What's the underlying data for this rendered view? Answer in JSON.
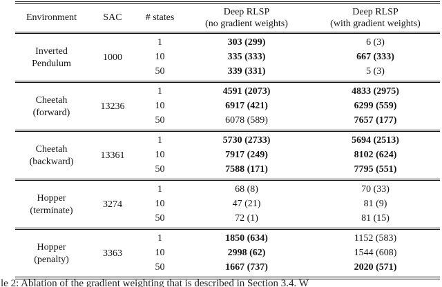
{
  "colors": {
    "ink": "#141414",
    "background": "#ffffff"
  },
  "table": {
    "header": {
      "environment": "Environment",
      "sac": "SAC",
      "states": "# states",
      "no_grad_title": "Deep RLSP",
      "no_grad_sub": "(no gradient weights)",
      "with_grad_title": "Deep RLSP",
      "with_grad_sub": "(with gradient weights)"
    },
    "blocks": [
      {
        "environment": "Inverted\nPendulum",
        "sac": "1000",
        "rows": [
          {
            "states": "1",
            "no_grad": "303 (299)",
            "no_grad_bold": true,
            "with_grad": "6 (3)",
            "with_grad_bold": false
          },
          {
            "states": "10",
            "no_grad": "335 (333)",
            "no_grad_bold": true,
            "with_grad": "667 (333)",
            "with_grad_bold": true
          },
          {
            "states": "50",
            "no_grad": "339 (331)",
            "no_grad_bold": true,
            "with_grad": "5 (3)",
            "with_grad_bold": false
          }
        ]
      },
      {
        "environment": "Cheetah\n(forward)",
        "sac": "13236",
        "rows": [
          {
            "states": "1",
            "no_grad": "4591 (2073)",
            "no_grad_bold": true,
            "with_grad": "4833 (2975)",
            "with_grad_bold": true
          },
          {
            "states": "10",
            "no_grad": "6917 (421)",
            "no_grad_bold": true,
            "with_grad": "6299 (559)",
            "with_grad_bold": true
          },
          {
            "states": "50",
            "no_grad": "6078 (589)",
            "no_grad_bold": false,
            "with_grad": "7657 (177)",
            "with_grad_bold": true
          }
        ]
      },
      {
        "environment": "Cheetah\n(backward)",
        "sac": "13361",
        "rows": [
          {
            "states": "1",
            "no_grad": "5730 (2733)",
            "no_grad_bold": true,
            "with_grad": "5694 (2513)",
            "with_grad_bold": true
          },
          {
            "states": "10",
            "no_grad": "7917 (249)",
            "no_grad_bold": true,
            "with_grad": "8102 (624)",
            "with_grad_bold": true
          },
          {
            "states": "50",
            "no_grad": "7588 (171)",
            "no_grad_bold": true,
            "with_grad": "7795 (551)",
            "with_grad_bold": true
          }
        ]
      },
      {
        "environment": "Hopper\n(terminate)",
        "sac": "3274",
        "rows": [
          {
            "states": "1",
            "no_grad": "68 (8)",
            "no_grad_bold": false,
            "with_grad": "70 (33)",
            "with_grad_bold": false
          },
          {
            "states": "10",
            "no_grad": "47 (21)",
            "no_grad_bold": false,
            "with_grad": "81 (9)",
            "with_grad_bold": false
          },
          {
            "states": "50",
            "no_grad": "72 (1)",
            "no_grad_bold": false,
            "with_grad": "81 (15)",
            "with_grad_bold": false
          }
        ]
      },
      {
        "environment": "Hopper\n(penalty)",
        "sac": "3363",
        "rows": [
          {
            "states": "1",
            "no_grad": "1850 (634)",
            "no_grad_bold": true,
            "with_grad": "1152 (583)",
            "with_grad_bold": false
          },
          {
            "states": "10",
            "no_grad": "2998 (62)",
            "no_grad_bold": true,
            "with_grad": "1544 (608)",
            "with_grad_bold": false
          },
          {
            "states": "50",
            "no_grad": "1667 (737)",
            "no_grad_bold": true,
            "with_grad": "2020 (571)",
            "with_grad_bold": true
          }
        ]
      }
    ]
  },
  "caption": {
    "text": "le 2: Ablation of the gradient weighting that is described in Section 3.4. W"
  }
}
